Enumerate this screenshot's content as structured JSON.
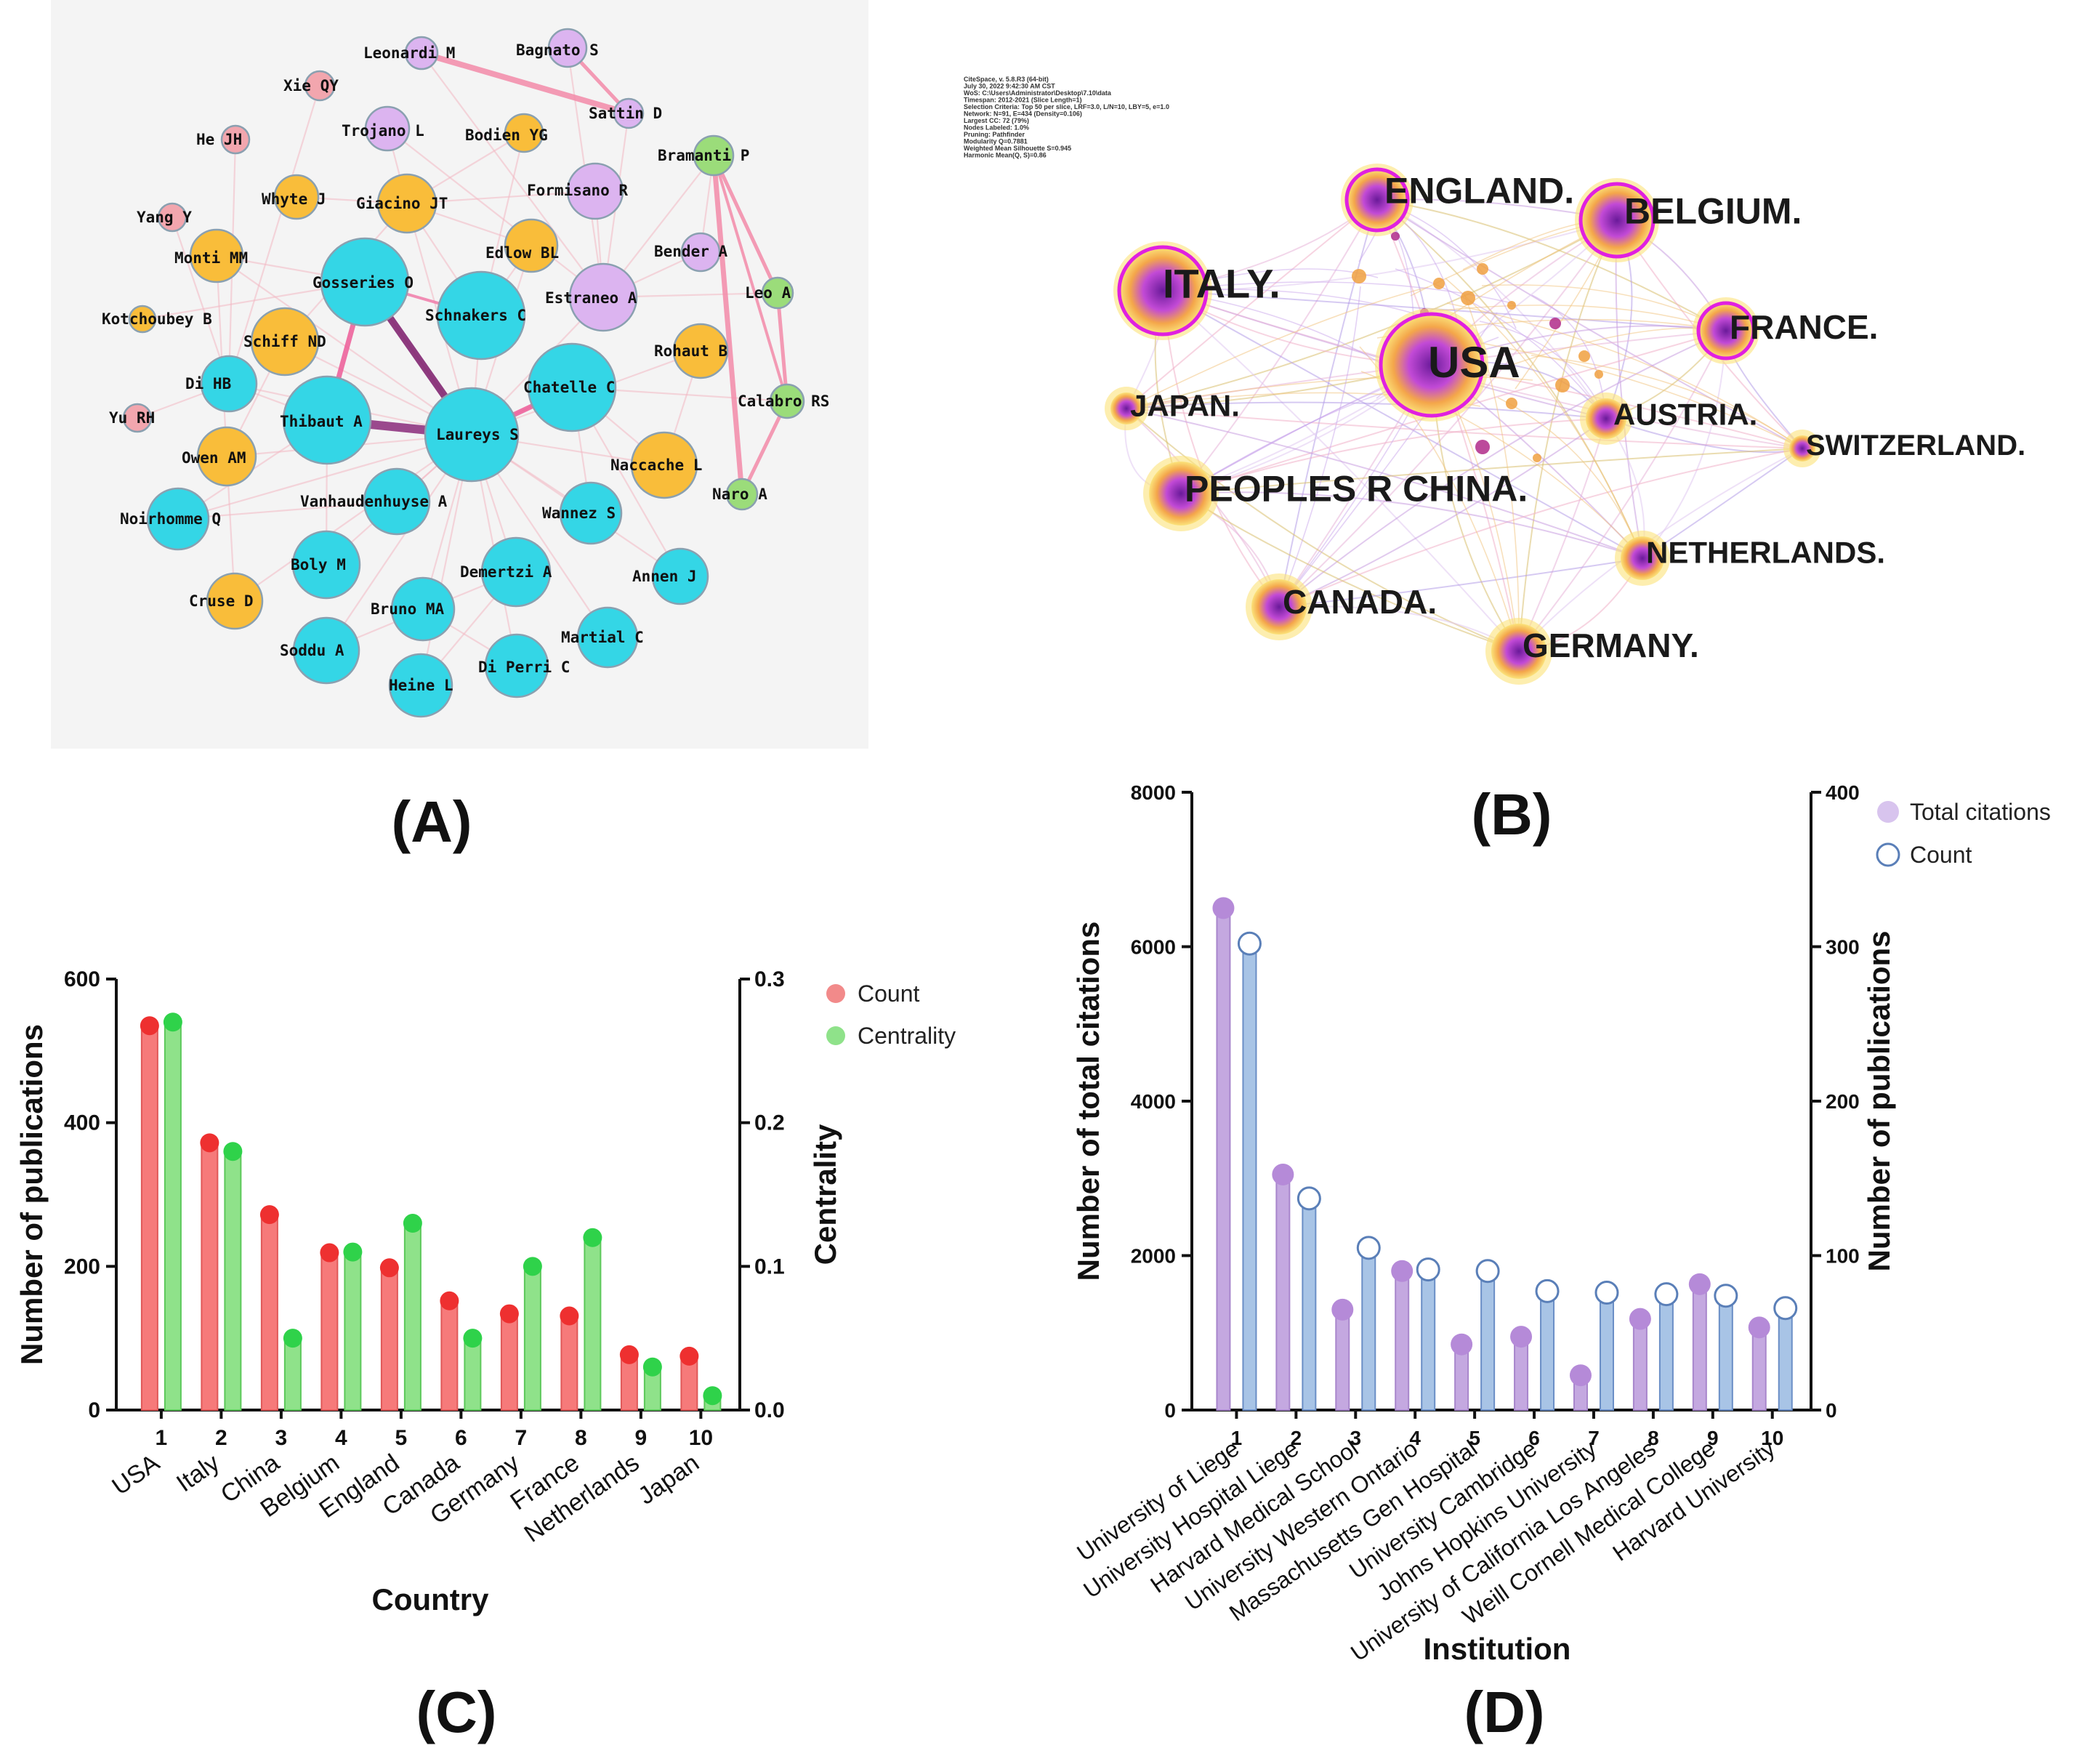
{
  "panel_labels": {
    "a": "(A)",
    "b": "(B)",
    "c": "(C)",
    "d": "(D)"
  },
  "colors": {
    "cyan": "#34d6e6",
    "orange": "#f9bd3a",
    "lilac": "#dcb4f0",
    "pink": "#f2a6ae",
    "green": "#9bdc7a",
    "count_red": "#ee3030",
    "count_bar": "#f67a7a",
    "centrality_green": "#2fd24a",
    "centrality_bar": "#8fe28a",
    "purple_bar": "#c4a8e0",
    "purple_dot": "#b58ad8",
    "blue_bar": "#a8c4e6",
    "blue_ring": "#5a7fb8"
  },
  "network_a": {
    "nodes": [
      {
        "label": "Leonardi M",
        "color": "lilac"
      },
      {
        "label": "Bagnato S",
        "color": "lilac"
      },
      {
        "label": "Xie QY",
        "color": "pink"
      },
      {
        "label": "Sattin D",
        "color": "lilac"
      },
      {
        "label": "He JH",
        "color": "pink"
      },
      {
        "label": "Trojano L",
        "color": "lilac"
      },
      {
        "label": "Bodien YG",
        "color": "orange"
      },
      {
        "label": "Bramanti P",
        "color": "green"
      },
      {
        "label": "Formisano R",
        "color": "lilac"
      },
      {
        "label": "Whyte J",
        "color": "orange"
      },
      {
        "label": "Giacino JT",
        "color": "orange"
      },
      {
        "label": "Yang Y",
        "color": "pink"
      },
      {
        "label": "Monti MM",
        "color": "orange"
      },
      {
        "label": "Edlow BL",
        "color": "orange"
      },
      {
        "label": "Bender A",
        "color": "lilac"
      },
      {
        "label": "Gosseries O",
        "color": "cyan"
      },
      {
        "label": "Leo A",
        "color": "green"
      },
      {
        "label": "Estraneo A",
        "color": "lilac"
      },
      {
        "label": "Kotchoubey B",
        "color": "orange"
      },
      {
        "label": "Schnakers C",
        "color": "cyan"
      },
      {
        "label": "Schiff ND",
        "color": "orange"
      },
      {
        "label": "Rohaut B",
        "color": "orange"
      },
      {
        "label": "Di HB",
        "color": "cyan"
      },
      {
        "label": "Chatelle C",
        "color": "cyan"
      },
      {
        "label": "Calabro RS",
        "color": "green"
      },
      {
        "label": "Yu RH",
        "color": "pink"
      },
      {
        "label": "Thibaut A",
        "color": "cyan"
      },
      {
        "label": "Laureys S",
        "color": "cyan"
      },
      {
        "label": "Owen AM",
        "color": "orange"
      },
      {
        "label": "Naccache L",
        "color": "orange"
      },
      {
        "label": "Naro A",
        "color": "green"
      },
      {
        "label": "Vanhaudenhuyse A",
        "color": "cyan"
      },
      {
        "label": "Noirhomme Q",
        "color": "cyan"
      },
      {
        "label": "Wannez S",
        "color": "cyan"
      },
      {
        "label": "Boly M",
        "color": "cyan"
      },
      {
        "label": "Demertzi A",
        "color": "cyan"
      },
      {
        "label": "Annen J",
        "color": "cyan"
      },
      {
        "label": "Cruse D",
        "color": "orange"
      },
      {
        "label": "Bruno MA",
        "color": "cyan"
      },
      {
        "label": "Martial C",
        "color": "cyan"
      },
      {
        "label": "Soddu A",
        "color": "cyan"
      },
      {
        "label": "Di Perri C",
        "color": "cyan"
      },
      {
        "label": "Heine L",
        "color": "cyan"
      }
    ]
  },
  "network_b": {
    "info_lines": [
      "CiteSpace, v. 5.8.R3 (64-bit)",
      "July 30, 2022 9:42:30 AM CST",
      "WoS: C:\\Users\\Administrator\\Desktop\\7.10\\data",
      "Timespan: 2012-2021 (Slice Length=1)",
      "Selection Criteria: Top 50 per slice, LRF=3.0, L/N=10, LBY=5, e=1.0",
      "Network: N=91, E=434 (Density=0.106)",
      "Largest CC: 72 (79%)",
      "Nodes Labeled: 1.0%",
      "Pruning: Pathfinder",
      "Modularity Q=0.7881",
      "Weighted Mean Silhouette S=0.945",
      "Harmonic Mean(Q, S)=0.86"
    ],
    "countries": [
      {
        "label": "ENGLAND."
      },
      {
        "label": "BELGIUM."
      },
      {
        "label": "ITALY."
      },
      {
        "label": "FRANCE."
      },
      {
        "label": "USA"
      },
      {
        "label": "JAPAN."
      },
      {
        "label": "AUSTRIA."
      },
      {
        "label": "SWITZERLAND."
      },
      {
        "label": "PEOPLES R CHINA."
      },
      {
        "label": "NETHERLANDS."
      },
      {
        "label": "CANADA."
      },
      {
        "label": "GERMANY."
      }
    ]
  },
  "chart_data": [
    {
      "type": "bar",
      "panel": "C",
      "title": "",
      "xlabel": "Country",
      "ylabel": "Number of publications",
      "y2label": "Centrality",
      "categories": [
        "1",
        "2",
        "3",
        "4",
        "5",
        "6",
        "7",
        "8",
        "9",
        "10"
      ],
      "category_names": [
        "USA",
        "Italy",
        "China",
        "Belgium",
        "England",
        "Canada",
        "Germany",
        "France",
        "Netherlands",
        "Japan"
      ],
      "ylim": [
        0,
        600
      ],
      "y2lim": [
        0,
        0.3
      ],
      "yticks": [
        "0",
        "200",
        "400",
        "600"
      ],
      "y2ticks": [
        "0.0",
        "0.1",
        "0.2",
        "0.3"
      ],
      "series": [
        {
          "name": "Count",
          "axis": "left",
          "values": [
            535,
            372,
            272,
            219,
            198,
            152,
            134,
            131,
            77,
            75
          ]
        },
        {
          "name": "Centrality",
          "axis": "right",
          "values": [
            0.27,
            0.18,
            0.05,
            0.11,
            0.13,
            0.05,
            0.1,
            0.12,
            0.03,
            0.01
          ]
        }
      ],
      "legend": [
        "Count",
        "Centrality"
      ],
      "legend_position": "top-right"
    },
    {
      "type": "bar",
      "panel": "D",
      "title": "",
      "xlabel": "Institution",
      "ylabel": "Number of total citations",
      "y2label": "Number of publications",
      "categories": [
        "1",
        "2",
        "3",
        "4",
        "5",
        "6",
        "7",
        "8",
        "9",
        "10"
      ],
      "category_names": [
        "University of Liege",
        "University Hospital Liege",
        "Harvard Medical School",
        "University Western Ontario",
        "Massachusetts Gen Hospital",
        "University Cambridge",
        "Johns Hopkins University",
        "University of California Los Angeles",
        "Weill Cornell Medical College",
        "Harvard University"
      ],
      "ylim": [
        0,
        8000
      ],
      "y2lim": [
        0,
        400
      ],
      "yticks": [
        "0",
        "2000",
        "4000",
        "6000",
        "8000"
      ],
      "y2ticks": [
        "0",
        "100",
        "200",
        "300",
        "400"
      ],
      "series": [
        {
          "name": "Total citations",
          "axis": "left",
          "values": [
            6500,
            3050,
            1300,
            1800,
            850,
            950,
            450,
            1180,
            1630,
            1070
          ]
        },
        {
          "name": "Count",
          "axis": "right",
          "values": [
            302,
            137,
            105,
            91,
            90,
            77,
            76,
            75,
            74,
            66
          ]
        }
      ],
      "legend": [
        "Total citations",
        "Count"
      ],
      "legend_position": "top-right"
    }
  ]
}
